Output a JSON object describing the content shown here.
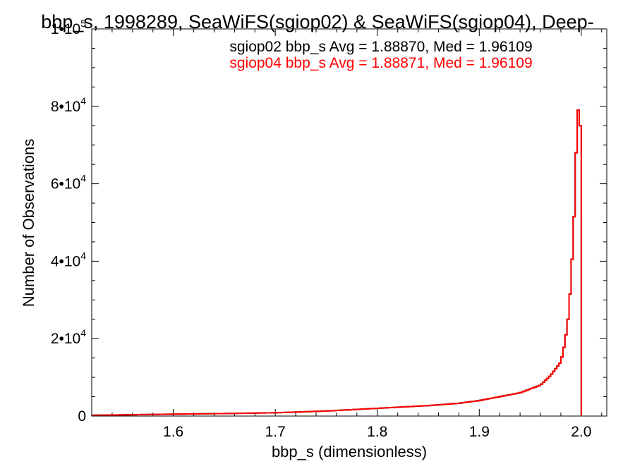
{
  "chart_data": {
    "type": "histogram",
    "title": "bbp_s, 1998289, SeaWiFS(sgiop02) & SeaWiFS(sgiop04), Deep-",
    "xlabel": "bbp_s (dimensionless)",
    "ylabel": "Number of Observations",
    "xlim": [
      1.52,
      2.025
    ],
    "ylim": [
      0,
      100000
    ],
    "x_ticks": [
      {
        "value": 1.6,
        "label": "1.6"
      },
      {
        "value": 1.7,
        "label": "1.7"
      },
      {
        "value": 1.8,
        "label": "1.8"
      },
      {
        "value": 1.9,
        "label": "1.9"
      },
      {
        "value": 2.0,
        "label": "2.0"
      }
    ],
    "y_ticks": [
      {
        "value": 0,
        "mant": "0",
        "exp": ""
      },
      {
        "value": 20000,
        "mant": "2•10",
        "exp": "4"
      },
      {
        "value": 40000,
        "mant": "4•10",
        "exp": "4"
      },
      {
        "value": 60000,
        "mant": "6•10",
        "exp": "4"
      },
      {
        "value": 80000,
        "mant": "8•10",
        "exp": "4"
      },
      {
        "value": 100000,
        "mant": "1•10",
        "exp": "5"
      }
    ],
    "bin_width": 0.002,
    "hist_start": 1.52,
    "anchors": [
      [
        1.52,
        200
      ],
      [
        1.55,
        300
      ],
      [
        1.6,
        500
      ],
      [
        1.65,
        650
      ],
      [
        1.7,
        850
      ],
      [
        1.75,
        1300
      ],
      [
        1.8,
        2000
      ],
      [
        1.85,
        2700
      ],
      [
        1.88,
        3300
      ],
      [
        1.9,
        4000
      ],
      [
        1.92,
        5000
      ],
      [
        1.94,
        6000
      ],
      [
        1.96,
        8000
      ],
      [
        1.97,
        10500
      ],
      [
        1.98,
        14000
      ],
      [
        1.984,
        19000
      ],
      [
        1.988,
        27000
      ],
      [
        1.992,
        45000
      ],
      [
        1.994,
        58000
      ],
      [
        1.996,
        78000
      ],
      [
        1.998,
        80000
      ],
      [
        2.0,
        70000
      ],
      [
        2.002,
        0
      ]
    ],
    "series": [
      {
        "name": "sgiop02",
        "color": "#000000"
      },
      {
        "name": "sgiop04",
        "color": "#ff0000"
      }
    ],
    "legend": [
      {
        "text": "sgiop02 bbp_s Avg = 1.88870, Med = 1.96109",
        "color": "#000000"
      },
      {
        "text": "sgiop04 bbp_s Avg = 1.88871, Med = 1.96109",
        "color": "#ff0000"
      }
    ],
    "legend_position": "top-center"
  }
}
